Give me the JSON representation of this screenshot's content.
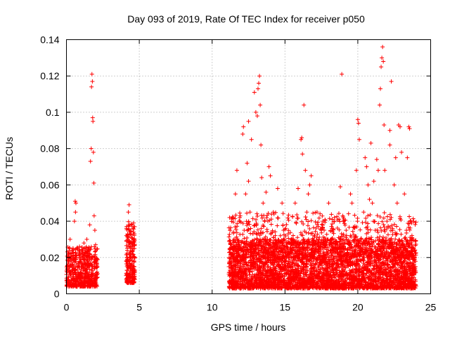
{
  "chart_data": {
    "type": "scatter",
    "title": "Day 093 of 2019, Rate Of TEC Index for receiver p050",
    "xlabel": "GPS time / hours",
    "ylabel": "ROTI / TECUs",
    "xlim": [
      0,
      25
    ],
    "ylim": [
      0,
      0.14
    ],
    "xticks": [
      0,
      5,
      10,
      15,
      20,
      25
    ],
    "xtick_labels": [
      "0",
      "5",
      "10",
      "15",
      "20",
      "25"
    ],
    "yticks": [
      0,
      0.02,
      0.04,
      0.06,
      0.08,
      0.1,
      0.12,
      0.14
    ],
    "ytick_labels": [
      "0",
      "0.02",
      "0.04",
      "0.06",
      "0.08",
      "0.1",
      "0.12",
      "0.14"
    ],
    "grid": true,
    "marker": "+",
    "marker_color": "#ff0000",
    "series": [
      {
        "name": "ROTI",
        "points": [
          [
            0.05,
            0.012
          ],
          [
            0.1,
            0.02
          ],
          [
            0.15,
            0.009
          ],
          [
            0.2,
            0.015
          ],
          [
            0.25,
            0.03
          ],
          [
            0.3,
            0.011
          ],
          [
            0.35,
            0.018
          ],
          [
            0.4,
            0.024
          ],
          [
            0.45,
            0.008
          ],
          [
            0.5,
            0.014
          ],
          [
            0.55,
            0.04
          ],
          [
            0.6,
            0.051
          ],
          [
            0.62,
            0.045
          ],
          [
            0.65,
            0.05
          ],
          [
            0.7,
            0.021
          ],
          [
            0.75,
            0.013
          ],
          [
            0.8,
            0.017
          ],
          [
            0.85,
            0.01
          ],
          [
            0.9,
            0.026
          ],
          [
            0.95,
            0.012
          ],
          [
            1.0,
            0.019
          ],
          [
            1.05,
            0.009
          ],
          [
            1.1,
            0.023
          ],
          [
            1.15,
            0.014
          ],
          [
            1.2,
            0.028
          ],
          [
            1.25,
            0.011
          ],
          [
            1.3,
            0.016
          ],
          [
            1.35,
            0.021
          ],
          [
            1.4,
            0.012
          ],
          [
            1.45,
            0.018
          ],
          [
            1.5,
            0.01
          ],
          [
            1.55,
            0.025
          ],
          [
            1.6,
            0.038
          ],
          [
            1.65,
            0.073
          ],
          [
            1.7,
            0.08
          ],
          [
            1.72,
            0.114
          ],
          [
            1.75,
            0.121
          ],
          [
            1.78,
            0.117
          ],
          [
            1.8,
            0.097
          ],
          [
            1.82,
            0.095
          ],
          [
            1.85,
            0.078
          ],
          [
            1.88,
            0.061
          ],
          [
            1.9,
            0.043
          ],
          [
            1.95,
            0.035
          ],
          [
            2.0,
            0.027
          ],
          [
            2.05,
            0.018
          ],
          [
            2.1,
            0.012
          ],
          [
            0.3,
            0.006
          ],
          [
            0.7,
            0.007
          ],
          [
            1.2,
            0.006
          ],
          [
            1.6,
            0.008
          ],
          [
            2.0,
            0.01
          ],
          [
            0.2,
            0.025
          ],
          [
            0.9,
            0.018
          ],
          [
            1.4,
            0.03
          ],
          [
            4.1,
            0.01
          ],
          [
            4.15,
            0.02
          ],
          [
            4.2,
            0.03
          ],
          [
            4.25,
            0.045
          ],
          [
            4.3,
            0.049
          ],
          [
            4.35,
            0.038
          ],
          [
            4.4,
            0.025
          ],
          [
            4.45,
            0.015
          ],
          [
            4.5,
            0.009
          ],
          [
            4.55,
            0.02
          ],
          [
            4.6,
            0.012
          ],
          [
            4.2,
            0.008
          ],
          [
            4.3,
            0.018
          ],
          [
            4.4,
            0.033
          ],
          [
            4.5,
            0.026
          ],
          [
            11.2,
            0.042
          ],
          [
            11.3,
            0.02
          ],
          [
            11.4,
            0.012
          ],
          [
            11.5,
            0.03
          ],
          [
            11.6,
            0.055
          ],
          [
            11.7,
            0.068
          ],
          [
            11.8,
            0.018
          ],
          [
            11.9,
            0.04
          ],
          [
            12.0,
            0.025
          ],
          [
            12.1,
            0.088
          ],
          [
            12.15,
            0.092
          ],
          [
            12.2,
            0.035
          ],
          [
            12.3,
            0.055
          ],
          [
            12.4,
            0.072
          ],
          [
            12.5,
            0.062
          ],
          [
            12.6,
            0.045
          ],
          [
            12.7,
            0.085
          ],
          [
            12.8,
            0.033
          ],
          [
            12.9,
            0.111
          ],
          [
            13.0,
            0.1
          ],
          [
            13.1,
            0.098
          ],
          [
            13.15,
            0.113
          ],
          [
            13.2,
            0.116
          ],
          [
            13.25,
            0.12
          ],
          [
            13.3,
            0.104
          ],
          [
            13.35,
            0.082
          ],
          [
            13.4,
            0.064
          ],
          [
            13.5,
            0.05
          ],
          [
            13.6,
            0.04
          ],
          [
            13.7,
            0.056
          ],
          [
            13.8,
            0.03
          ],
          [
            13.9,
            0.07
          ],
          [
            14.0,
            0.065
          ],
          [
            14.2,
            0.045
          ],
          [
            14.3,
            0.022
          ],
          [
            14.5,
            0.058
          ],
          [
            14.7,
            0.015
          ],
          [
            14.9,
            0.035
          ],
          [
            15.1,
            0.02
          ],
          [
            15.3,
            0.028
          ],
          [
            15.5,
            0.012
          ],
          [
            15.7,
            0.05
          ],
          [
            15.9,
            0.058
          ],
          [
            16.1,
            0.085
          ],
          [
            16.15,
            0.086
          ],
          [
            16.2,
            0.077
          ],
          [
            16.3,
            0.104
          ],
          [
            16.4,
            0.068
          ],
          [
            16.5,
            0.045
          ],
          [
            16.6,
            0.055
          ],
          [
            16.7,
            0.06
          ],
          [
            16.8,
            0.065
          ],
          [
            17.0,
            0.032
          ],
          [
            17.2,
            0.045
          ],
          [
            17.4,
            0.02
          ],
          [
            17.6,
            0.04
          ],
          [
            17.8,
            0.016
          ],
          [
            18.0,
            0.05
          ],
          [
            18.2,
            0.03
          ],
          [
            18.4,
            0.042
          ],
          [
            18.6,
            0.025
          ],
          [
            18.8,
            0.059
          ],
          [
            18.9,
            0.121
          ],
          [
            19.0,
            0.04
          ],
          [
            19.2,
            0.035
          ],
          [
            19.4,
            0.02
          ],
          [
            19.6,
            0.05
          ],
          [
            19.8,
            0.028
          ],
          [
            19.9,
            0.068
          ],
          [
            20.0,
            0.096
          ],
          [
            20.05,
            0.094
          ],
          [
            20.1,
            0.085
          ],
          [
            20.2,
            0.03
          ],
          [
            20.4,
            0.045
          ],
          [
            20.6,
            0.07
          ],
          [
            20.7,
            0.06
          ],
          [
            20.8,
            0.052
          ],
          [
            20.9,
            0.083
          ],
          [
            21.0,
            0.05
          ],
          [
            21.1,
            0.062
          ],
          [
            21.2,
            0.035
          ],
          [
            21.3,
            0.074
          ],
          [
            21.5,
            0.104
          ],
          [
            21.55,
            0.113
          ],
          [
            21.6,
            0.125
          ],
          [
            21.65,
            0.13
          ],
          [
            21.7,
            0.136
          ],
          [
            21.75,
            0.128
          ],
          [
            21.8,
            0.093
          ],
          [
            21.85,
            0.068
          ],
          [
            22.0,
            0.04
          ],
          [
            22.2,
            0.082
          ],
          [
            22.3,
            0.117
          ],
          [
            22.4,
            0.035
          ],
          [
            22.5,
            0.06
          ],
          [
            22.6,
            0.075
          ],
          [
            22.7,
            0.05
          ],
          [
            22.8,
            0.093
          ],
          [
            22.9,
            0.092
          ],
          [
            23.0,
            0.078
          ],
          [
            23.2,
            0.055
          ],
          [
            23.4,
            0.075
          ],
          [
            23.5,
            0.092
          ],
          [
            23.55,
            0.091
          ],
          [
            23.6,
            0.04
          ],
          [
            23.7,
            0.025
          ],
          [
            23.8,
            0.015
          ],
          [
            23.9,
            0.02
          ],
          [
            12.5,
            0.095
          ],
          [
            13.1,
            0.03
          ],
          [
            14.8,
            0.05
          ],
          [
            17.5,
            0.035
          ],
          [
            19.5,
            0.055
          ],
          [
            20.5,
            0.075
          ],
          [
            21.4,
            0.068
          ],
          [
            22.2,
            0.09
          ]
        ],
        "dense_bands": [
          {
            "x_range": [
              0.0,
              2.15
            ],
            "y_range": [
              0.004,
              0.026
            ],
            "count": 500
          },
          {
            "x_range": [
              4.1,
              4.7
            ],
            "y_range": [
              0.006,
              0.04
            ],
            "count": 220
          },
          {
            "x_range": [
              11.15,
              24.0
            ],
            "y_range": [
              0.003,
              0.03
            ],
            "count": 3800
          },
          {
            "x_range": [
              11.15,
              24.0
            ],
            "y_range": [
              0.02,
              0.045
            ],
            "count": 700
          }
        ]
      }
    ]
  }
}
